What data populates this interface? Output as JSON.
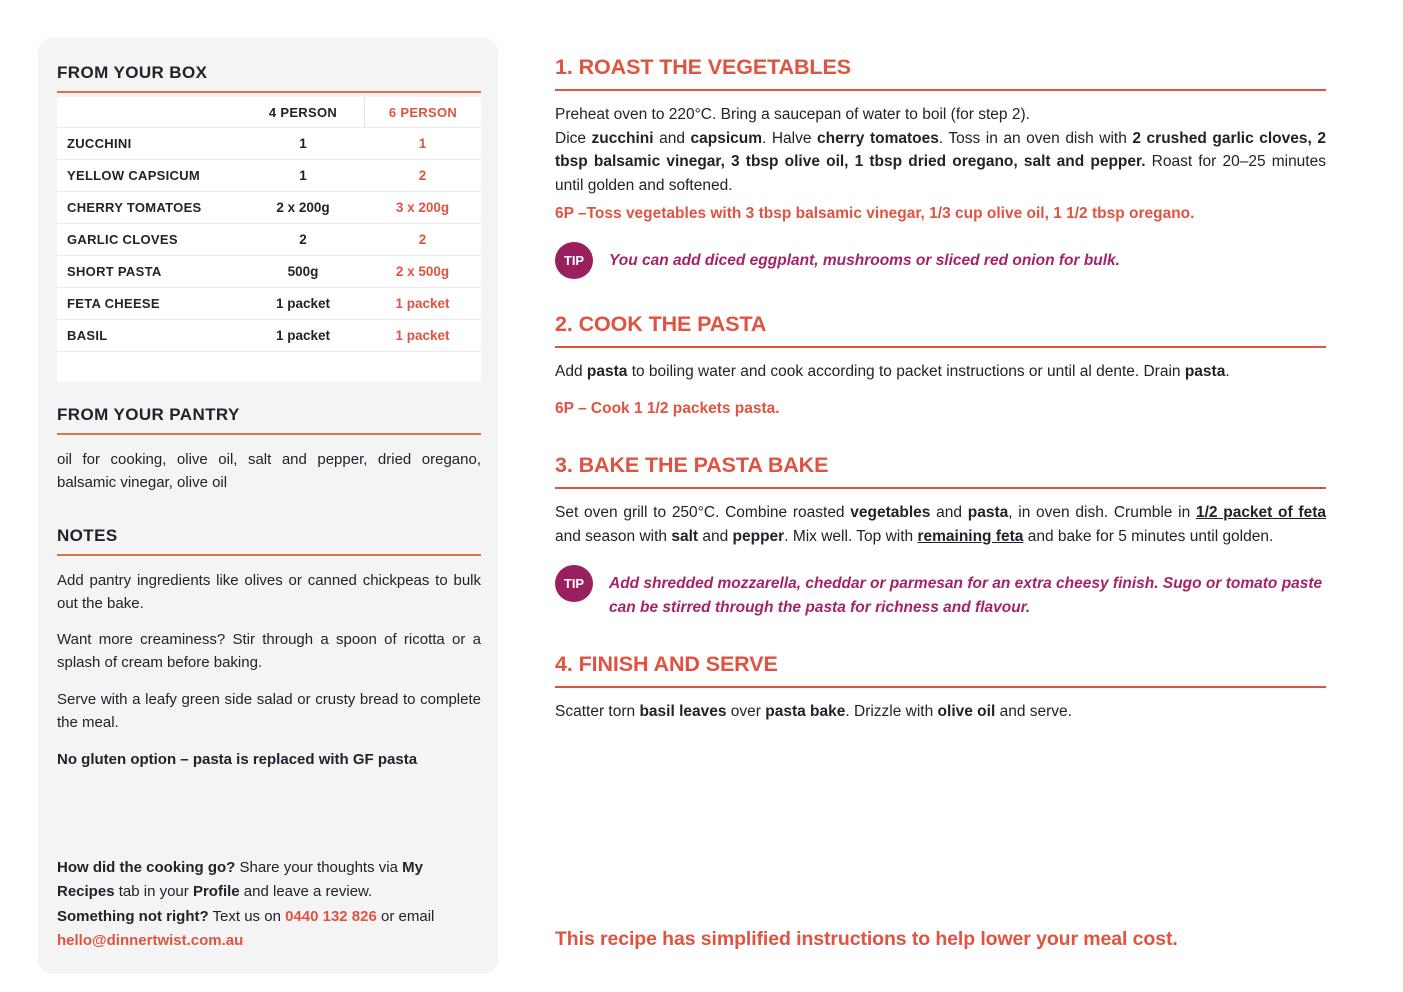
{
  "theme": {
    "accent": "#DE5441",
    "rule-side": "#E0714E",
    "magenta": "#9A1F5F",
    "magenta_text": "#A42467",
    "ink": "#20232C",
    "panel": "#F4F4F5"
  },
  "tip_label": "TIP",
  "sidebar": {
    "box": {
      "title": "FROM YOUR BOX",
      "col_4": "4 PERSON",
      "col_6": "6 PERSON",
      "rows": [
        {
          "name": "ZUCCHINI",
          "p4": "1",
          "p6": "1"
        },
        {
          "name": "YELLOW CAPSICUM",
          "p4": "1",
          "p6": "2"
        },
        {
          "name": "CHERRY TOMATOES",
          "p4": "2 x 200g",
          "p6": "3 x 200g"
        },
        {
          "name": "GARLIC CLOVES",
          "p4": "2",
          "p6": "2"
        },
        {
          "name": "SHORT PASTA",
          "p4": "500g",
          "p6": "2 x 500g"
        },
        {
          "name": "FETA CHEESE",
          "p4": "1 packet",
          "p6": "1 packet"
        },
        {
          "name": "BASIL",
          "p4": "1 packet",
          "p6": "1 packet"
        }
      ]
    },
    "pantry": {
      "title": "FROM YOUR PANTRY",
      "text": "oil for cooking, olive oil, salt and pepper, dried oregano, balsamic vinegar, olive oil"
    },
    "notes": {
      "title": "NOTES",
      "paragraphs": [
        "Add pantry ingredients like olives or canned chickpeas to bulk out the bake.",
        "Want more creaminess? Stir through a spoon of ricotta or a splash of cream before baking.",
        "Serve with a leafy green side salad or crusty bread to complete the meal."
      ],
      "bold_note": "No gluten option – pasta is replaced with GF pasta"
    },
    "contact": {
      "p1": [
        {
          "t": "How did the cooking go?",
          "s": "b"
        },
        {
          "t": " Share your thoughts via "
        },
        {
          "t": "My Recipes",
          "s": "b"
        },
        {
          "t": " tab in your "
        },
        {
          "t": "Profile",
          "s": "b"
        },
        {
          "t": " and leave a review."
        }
      ],
      "p2": [
        {
          "t": "Something not right?",
          "s": "b"
        },
        {
          "t": " Text us on "
        },
        {
          "t": "0440 132 826",
          "s": "a",
          "n": "phone-link",
          "i": true
        },
        {
          "t": " or email "
        },
        {
          "t": "hello@dinnertwist.com.au",
          "s": "a",
          "n": "email-link",
          "i": true
        }
      ]
    }
  },
  "steps": [
    {
      "heading": "1. ROAST THE VEGETABLES",
      "paragraphs": [
        [
          {
            "t": "Preheat oven to 220°C. Bring a saucepan of water to boil (for step 2)."
          }
        ],
        [
          {
            "t": "Dice "
          },
          {
            "t": "zucchini",
            "s": "b"
          },
          {
            "t": " and "
          },
          {
            "t": "capsicum",
            "s": "b"
          },
          {
            "t": ". Halve "
          },
          {
            "t": "cherry tomatoes",
            "s": "b"
          },
          {
            "t": ". Toss in an oven dish with "
          },
          {
            "t": "2 crushed garlic cloves, 2 tbsp balsamic vinegar, 3 tbsp olive oil, 1 tbsp dried oregano, salt and pepper.",
            "s": "b"
          },
          {
            "t": " Roast for 20–25 minutes until golden and softened."
          }
        ]
      ],
      "sixp": "6P –Toss vegetables with 3 tbsp balsamic vinegar, 1/3 cup olive oil, 1 1/2 tbsp oregano.",
      "tip": "You can add diced eggplant, mushrooms or sliced red onion for bulk."
    },
    {
      "heading": "2. COOK THE PASTA",
      "paragraphs": [
        [
          {
            "t": "Add "
          },
          {
            "t": "pasta",
            "s": "b"
          },
          {
            "t": " to boiling water and cook according to packet instructions or until al dente. Drain "
          },
          {
            "t": "pasta",
            "s": "b"
          },
          {
            "t": "."
          }
        ]
      ],
      "sixp": "6P – Cook 1 1/2 packets pasta.",
      "tip": null
    },
    {
      "heading": "3. BAKE THE PASTA BAKE",
      "paragraphs": [
        [
          {
            "t": "Set oven grill to 250°C. Combine roasted "
          },
          {
            "t": "vegetables",
            "s": "b"
          },
          {
            "t": " and "
          },
          {
            "t": "pasta",
            "s": "b"
          },
          {
            "t": ", in oven dish. Crumble in "
          },
          {
            "t": "1/2 packet of feta",
            "s": "bu"
          },
          {
            "t": " and season with "
          },
          {
            "t": "salt",
            "s": "b"
          },
          {
            "t": " and "
          },
          {
            "t": "pepper",
            "s": "b"
          },
          {
            "t": ". Mix well. Top with "
          },
          {
            "t": "remaining feta",
            "s": "bu"
          },
          {
            "t": " and bake for 5 minutes until golden."
          }
        ]
      ],
      "sixp": null,
      "tip": "Add shredded mozzarella, cheddar or parmesan for an extra cheesy finish. Sugo or tomato paste can be stirred through the pasta for richness and flavour."
    },
    {
      "heading": "4. FINISH AND SERVE",
      "paragraphs": [
        [
          {
            "t": "Scatter torn "
          },
          {
            "t": "basil leaves",
            "s": "b"
          },
          {
            "t": " over "
          },
          {
            "t": "pasta bake",
            "s": "b"
          },
          {
            "t": ". Drizzle with "
          },
          {
            "t": "olive oil",
            "s": "b"
          },
          {
            "t": " and serve."
          }
        ]
      ],
      "sixp": null,
      "tip": null
    }
  ],
  "footer": "This recipe has simplified instructions to help lower your meal cost."
}
